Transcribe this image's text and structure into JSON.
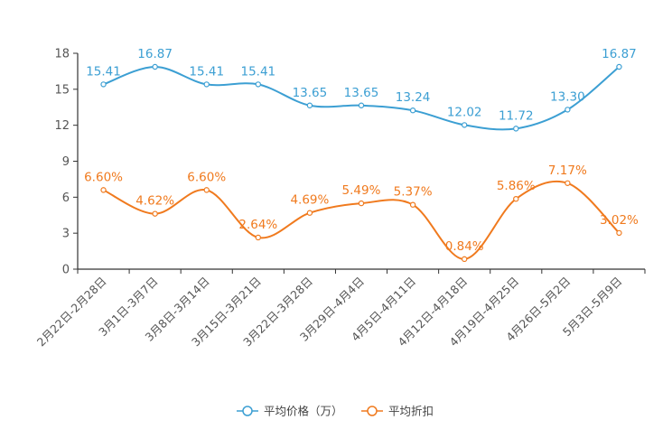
{
  "chart_data": {
    "type": "line",
    "title": "",
    "xlabel": "",
    "ylabel": "",
    "ylim": [
      0,
      18
    ],
    "yticks": [
      0,
      3,
      6,
      9,
      12,
      15,
      18
    ],
    "categories": [
      "2月22日-2月28日",
      "3月1日-3月7日",
      "3月8日-3月14日",
      "3月15日-3月21日",
      "3月22日-3月28日",
      "3月29日-4月4日",
      "4月5日-4月11日",
      "4月12日-4月18日",
      "4月19日-4月25日",
      "4月26日-5月2日",
      "5月3日-5月9日"
    ],
    "series": [
      {
        "name": "平均价格（万）",
        "color": "#3c9fd3",
        "values": [
          15.41,
          16.87,
          15.41,
          15.41,
          13.65,
          13.65,
          13.24,
          12.02,
          11.72,
          13.3,
          16.87
        ],
        "labels": [
          "15.41",
          "16.87",
          "15.41",
          "15.41",
          "13.65",
          "13.65",
          "13.24",
          "12.02",
          "11.72",
          "13.30",
          "16.87"
        ]
      },
      {
        "name": "平均折扣",
        "color": "#f07a1e",
        "values": [
          6.6,
          4.62,
          6.6,
          2.64,
          4.69,
          5.49,
          5.37,
          0.84,
          5.86,
          7.17,
          3.02
        ],
        "labels": [
          "6.60%",
          "4.62%",
          "6.60%",
          "2.64%",
          "4.69%",
          "5.49%",
          "5.37%",
          "0.84%",
          "5.86%",
          "7.17%",
          "3.02%"
        ]
      }
    ],
    "legend_position": "bottom-center"
  }
}
